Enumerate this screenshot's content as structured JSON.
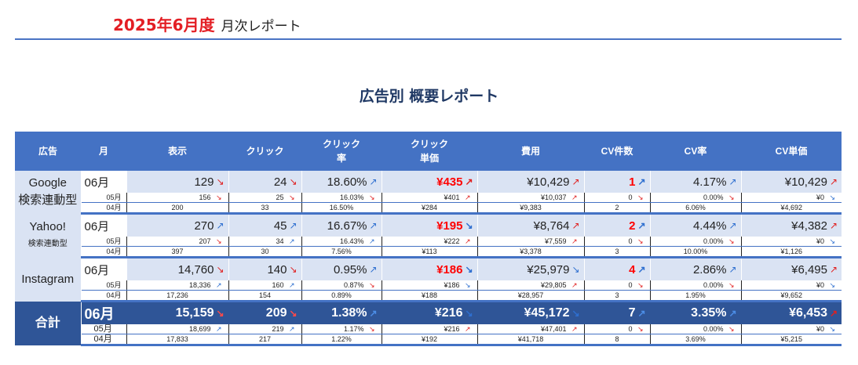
{
  "header": {
    "year_month": "2025年6月度",
    "subtitle": "月次レポート"
  },
  "title": "広告別 概要レポート",
  "columns": [
    "広告",
    "月",
    "表示",
    "クリック",
    "クリック\n率",
    "クリック\n単価",
    "費用",
    "CV件数",
    "CV率",
    "CV単価"
  ],
  "groups": [
    {
      "name": "Google",
      "name2": "検索連動型",
      "rows": [
        {
          "month": "06月",
          "values": [
            "129",
            "24",
            "18.60%",
            "¥435",
            "¥10,429",
            "1",
            "4.17%",
            "¥10,429"
          ],
          "trend": [
            "down",
            "down",
            "up",
            "up",
            "up",
            "up",
            "up",
            "up"
          ]
        },
        {
          "month": "05月",
          "values": [
            "156",
            "25",
            "16.03%",
            "¥401",
            "¥10,037",
            "0",
            "0.00%",
            "¥0"
          ],
          "trend": [
            "down",
            "down",
            "down",
            "up",
            "up",
            "down",
            "down",
            "down"
          ]
        },
        {
          "month": "04月",
          "values": [
            "200",
            "33",
            "16.50%",
            "¥284",
            "¥9,383",
            "2",
            "6.06%",
            "¥4,692"
          ]
        }
      ]
    },
    {
      "name": "Yahoo!",
      "name2": "検索連動型",
      "rows": [
        {
          "month": "06月",
          "values": [
            "270",
            "45",
            "16.67%",
            "¥195",
            "¥8,764",
            "2",
            "4.44%",
            "¥4,382"
          ],
          "trend": [
            "up",
            "up",
            "up",
            "down",
            "up",
            "up",
            "up",
            "up"
          ]
        },
        {
          "month": "05月",
          "values": [
            "207",
            "34",
            "16.43%",
            "¥222",
            "¥7,559",
            "0",
            "0.00%",
            "¥0"
          ],
          "trend": [
            "down",
            "up",
            "up",
            "up",
            "up",
            "down",
            "down",
            "down"
          ]
        },
        {
          "month": "04月",
          "values": [
            "397",
            "30",
            "7.56%",
            "¥113",
            "¥3,378",
            "3",
            "10.00%",
            "¥1,126"
          ]
        }
      ]
    },
    {
      "name": "Instagram",
      "name2": "",
      "rows": [
        {
          "month": "06月",
          "values": [
            "14,760",
            "140",
            "0.95%",
            "¥186",
            "¥25,979",
            "4",
            "2.86%",
            "¥6,495"
          ],
          "trend": [
            "down",
            "down",
            "up",
            "down",
            "down",
            "up",
            "up",
            "up"
          ]
        },
        {
          "month": "05月",
          "values": [
            "18,336",
            "160",
            "0.87%",
            "¥186",
            "¥29,805",
            "0",
            "0.00%",
            "¥0"
          ],
          "trend": [
            "up",
            "up",
            "down",
            "down",
            "up",
            "down",
            "down",
            "down"
          ]
        },
        {
          "month": "04月",
          "values": [
            "17,236",
            "154",
            "0.89%",
            "¥188",
            "¥28,957",
            "3",
            "1.95%",
            "¥9,652"
          ]
        }
      ]
    }
  ],
  "total": {
    "name": "合計",
    "rows": [
      {
        "month": "06月",
        "values": [
          "15,159",
          "209",
          "1.38%",
          "¥216",
          "¥45,172",
          "7",
          "3.35%",
          "¥6,453"
        ],
        "trend": [
          "down",
          "down",
          "up",
          "down",
          "down",
          "up",
          "up",
          "up"
        ]
      },
      {
        "month": "05月",
        "values": [
          "18,699",
          "219",
          "1.17%",
          "¥216",
          "¥47,401",
          "0",
          "0.00%",
          "¥0"
        ],
        "trend": [
          "up",
          "up",
          "down",
          "up",
          "up",
          "down",
          "down",
          "down"
        ]
      },
      {
        "month": "04月",
        "values": [
          "17,833",
          "217",
          "1.22%",
          "¥192",
          "¥41,718",
          "8",
          "3.69%",
          "¥5,215"
        ]
      }
    ]
  },
  "highlight_columns": [
    3,
    5
  ],
  "colors": {
    "header_bg": "#4472c4",
    "label_bg": "#dae3f3",
    "total_bg": "#2f5597",
    "up": "#2e6fd0",
    "down": "#e02020",
    "accent": "#ff0000"
  },
  "icons": {
    "up": "arrow-up-right-icon",
    "down": "arrow-down-right-icon"
  }
}
